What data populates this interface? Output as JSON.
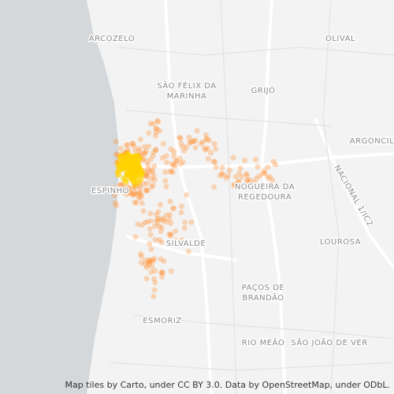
{
  "places": [
    {
      "lines": [
        "ARCOZELO"
      ]
    },
    {
      "lines": [
        "OLIVAL"
      ]
    },
    {
      "lines": [
        "SÃO FÉLIX DA",
        "MARINHA"
      ]
    },
    {
      "lines": [
        "GRIJÓ"
      ]
    },
    {
      "lines": [
        "ARGONCIL"
      ]
    },
    {
      "lines": [
        "ESPINHO"
      ]
    },
    {
      "lines": [
        "NOGUEIRA DA",
        "REGEDOURA"
      ]
    },
    {
      "lines": [
        "NACIONAL 1/IC2"
      ]
    },
    {
      "lines": [
        "SILVALDE"
      ]
    },
    {
      "lines": [
        "LOUROSA"
      ]
    },
    {
      "lines": [
        "PAÇOS DE",
        "BRANDÃO"
      ]
    },
    {
      "lines": [
        "ESMORIZ"
      ]
    },
    {
      "lines": [
        "RIO MEÃO"
      ]
    },
    {
      "lines": [
        "SÃO JOÃO DE VER"
      ]
    }
  ],
  "attribution": "Map tiles by Carto, under CC BY 3.0. Data by OpenStreetMap, under ODbL."
}
